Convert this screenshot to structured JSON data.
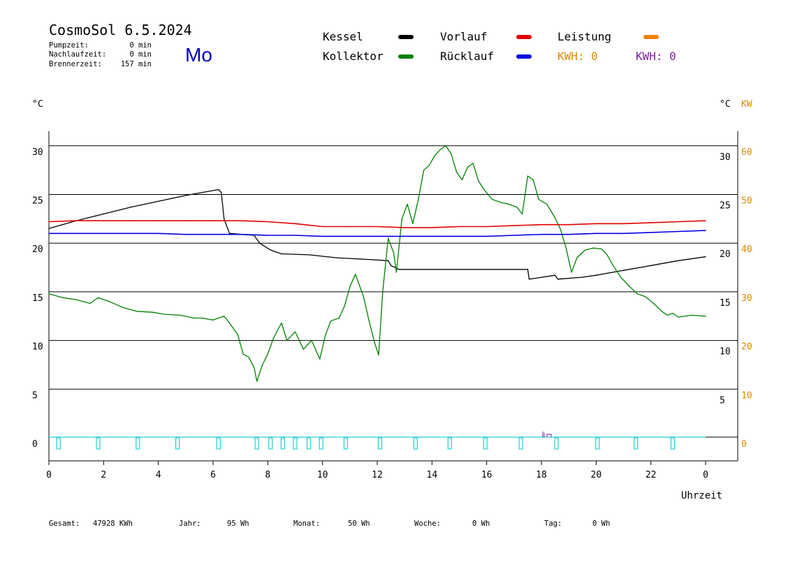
{
  "header": {
    "title": "CosmoSol 6.5.2024",
    "day": "Mo",
    "stats": [
      {
        "label": "Pumpzeit:",
        "value": "0 min"
      },
      {
        "label": "Nachlaufzeit:",
        "value": "0 min"
      },
      {
        "label": "Brennerzeit:",
        "value": "157 min"
      }
    ]
  },
  "legend": {
    "items": [
      {
        "label": "Kessel",
        "color": "#000000"
      },
      {
        "label": "Kollektor",
        "color": "#008000"
      },
      {
        "label": "Vorlauf",
        "color": "#e00000"
      },
      {
        "label": "Rücklauf",
        "color": "#0000e0"
      },
      {
        "label": "Leistung",
        "color": "#f08000"
      }
    ],
    "kwh_left": "KWH: 0",
    "kwh_left_color": "#e08a00",
    "kwh_right": "KWH: 0",
    "kwh_right_color": "#8020a0"
  },
  "axes": {
    "left_unit": "°C",
    "right_unit": "°C",
    "right_unit2": "KW",
    "xlabel": "Uhrzeit"
  },
  "footer": {
    "items": [
      {
        "label": "Gesamt:",
        "value": "47928 KWh"
      },
      {
        "label": "Jahr:",
        "value": "95 Wh"
      },
      {
        "label": "Monat:",
        "value": "50 Wh"
      },
      {
        "label": "Woche:",
        "value": "0 Wh"
      },
      {
        "label": "Tag:",
        "value": "0 Wh"
      }
    ]
  },
  "chart_data": {
    "type": "line",
    "x_ticks": [
      "0",
      "2",
      "4",
      "6",
      "8",
      "10",
      "12",
      "14",
      "16",
      "18",
      "20",
      "22",
      "0"
    ],
    "x_range": [
      0,
      24
    ],
    "ylim": [
      -2.5,
      32
    ],
    "y_ticks_left": [
      "30",
      "25",
      "20",
      "15",
      "10",
      "5",
      "0"
    ],
    "y_tick_values": [
      30,
      25,
      20,
      15,
      10,
      5,
      0
    ],
    "y_ticks_right_c": [
      "30",
      "25",
      "20",
      "15",
      "10",
      "5"
    ],
    "y_ticks_right_kw": [
      "60",
      "50",
      "40",
      "30",
      "20",
      "10",
      "0"
    ],
    "grid": true,
    "series": [
      {
        "name": "Kessel",
        "color": "#000000",
        "points": [
          [
            0,
            21.5
          ],
          [
            1,
            22.3
          ],
          [
            2,
            23.0
          ],
          [
            3,
            23.7
          ],
          [
            4,
            24.3
          ],
          [
            5,
            24.9
          ],
          [
            6.2,
            25.5
          ],
          [
            6.3,
            25.2
          ],
          [
            6.4,
            22.5
          ],
          [
            6.6,
            21.0
          ],
          [
            7.5,
            20.8
          ],
          [
            7.7,
            20.0
          ],
          [
            8.1,
            19.3
          ],
          [
            8.5,
            18.9
          ],
          [
            9.5,
            18.8
          ],
          [
            10.5,
            18.5
          ],
          [
            11.8,
            18.3
          ],
          [
            12.4,
            18.2
          ],
          [
            12.5,
            17.7
          ],
          [
            12.8,
            17.3
          ],
          [
            17.5,
            17.3
          ],
          [
            17.55,
            16.3
          ],
          [
            18.5,
            16.7
          ],
          [
            18.6,
            16.3
          ],
          [
            19.5,
            16.5
          ],
          [
            20,
            16.7
          ],
          [
            21,
            17.2
          ],
          [
            22,
            17.7
          ],
          [
            23,
            18.2
          ],
          [
            24,
            18.6
          ]
        ]
      },
      {
        "name": "Kollektor",
        "color": "#008000",
        "points": [
          [
            0,
            14.8
          ],
          [
            0.5,
            14.4
          ],
          [
            1,
            14.2
          ],
          [
            1.5,
            13.8
          ],
          [
            1.8,
            14.4
          ],
          [
            2.2,
            14.0
          ],
          [
            2.7,
            13.4
          ],
          [
            3.2,
            13.0
          ],
          [
            3.8,
            12.9
          ],
          [
            4.2,
            12.7
          ],
          [
            4.8,
            12.6
          ],
          [
            5.3,
            12.3
          ],
          [
            5.6,
            12.3
          ],
          [
            6,
            12.1
          ],
          [
            6.4,
            12.5
          ],
          [
            6.6,
            11.8
          ],
          [
            6.9,
            10.6
          ],
          [
            7.1,
            8.6
          ],
          [
            7.3,
            8.3
          ],
          [
            7.5,
            7.2
          ],
          [
            7.6,
            5.8
          ],
          [
            7.8,
            7.5
          ],
          [
            8.0,
            8.6
          ],
          [
            8.2,
            10.2
          ],
          [
            8.5,
            11.8
          ],
          [
            8.7,
            10.0
          ],
          [
            9.0,
            10.9
          ],
          [
            9.3,
            9.1
          ],
          [
            9.6,
            10.0
          ],
          [
            9.9,
            8.1
          ],
          [
            10.1,
            10.5
          ],
          [
            10.3,
            12.0
          ],
          [
            10.6,
            12.3
          ],
          [
            10.8,
            13.5
          ],
          [
            11,
            15.5
          ],
          [
            11.2,
            16.8
          ],
          [
            11.5,
            14.5
          ],
          [
            11.7,
            12.0
          ],
          [
            11.9,
            9.8
          ],
          [
            12.05,
            8.5
          ],
          [
            12.2,
            15.0
          ],
          [
            12.4,
            20.5
          ],
          [
            12.6,
            19.0
          ],
          [
            12.7,
            17.0
          ],
          [
            12.9,
            22.5
          ],
          [
            13.1,
            24.0
          ],
          [
            13.3,
            22.0
          ],
          [
            13.5,
            24.5
          ],
          [
            13.7,
            27.5
          ],
          [
            13.9,
            28.0
          ],
          [
            14.1,
            29.0
          ],
          [
            14.3,
            29.6
          ],
          [
            14.5,
            30.0
          ],
          [
            14.7,
            29.2
          ],
          [
            14.9,
            27.3
          ],
          [
            15.1,
            26.5
          ],
          [
            15.3,
            27.8
          ],
          [
            15.5,
            28.2
          ],
          [
            15.7,
            26.4
          ],
          [
            15.9,
            25.5
          ],
          [
            16.2,
            24.5
          ],
          [
            16.5,
            24.2
          ],
          [
            16.8,
            24.0
          ],
          [
            17.1,
            23.7
          ],
          [
            17.3,
            23.0
          ],
          [
            17.5,
            26.9
          ],
          [
            17.7,
            26.5
          ],
          [
            17.9,
            24.5
          ],
          [
            18.2,
            24.0
          ],
          [
            18.5,
            22.6
          ],
          [
            18.7,
            21.4
          ],
          [
            18.9,
            19.5
          ],
          [
            19.1,
            17.0
          ],
          [
            19.3,
            18.5
          ],
          [
            19.6,
            19.3
          ],
          [
            19.9,
            19.5
          ],
          [
            20.2,
            19.4
          ],
          [
            20.4,
            18.8
          ],
          [
            20.6,
            17.8
          ],
          [
            20.9,
            16.5
          ],
          [
            21.2,
            15.6
          ],
          [
            21.5,
            14.8
          ],
          [
            21.8,
            14.5
          ],
          [
            22.1,
            13.8
          ],
          [
            22.4,
            13.0
          ],
          [
            22.6,
            12.6
          ],
          [
            22.8,
            12.8
          ],
          [
            23.0,
            12.4
          ],
          [
            23.5,
            12.6
          ],
          [
            24,
            12.5
          ]
        ]
      },
      {
        "name": "Vorlauf",
        "color": "#e00000",
        "points": [
          [
            0,
            22.2
          ],
          [
            1,
            22.3
          ],
          [
            2,
            22.3
          ],
          [
            3,
            22.3
          ],
          [
            4,
            22.3
          ],
          [
            5,
            22.3
          ],
          [
            6,
            22.3
          ],
          [
            7,
            22.3
          ],
          [
            8,
            22.2
          ],
          [
            9,
            22.0
          ],
          [
            10,
            21.7
          ],
          [
            11,
            21.7
          ],
          [
            12,
            21.7
          ],
          [
            13,
            21.6
          ],
          [
            14,
            21.6
          ],
          [
            15,
            21.7
          ],
          [
            16,
            21.7
          ],
          [
            17,
            21.8
          ],
          [
            18,
            21.9
          ],
          [
            19,
            21.9
          ],
          [
            20,
            22.0
          ],
          [
            21,
            22.0
          ],
          [
            22,
            22.1
          ],
          [
            23,
            22.2
          ],
          [
            24,
            22.3
          ]
        ]
      },
      {
        "name": "Rücklauf",
        "color": "#0000e0",
        "points": [
          [
            0,
            21.0
          ],
          [
            1,
            21.0
          ],
          [
            2,
            21.0
          ],
          [
            3,
            21.0
          ],
          [
            4,
            21.0
          ],
          [
            5,
            20.9
          ],
          [
            6,
            20.9
          ],
          [
            7,
            20.9
          ],
          [
            8,
            20.8
          ],
          [
            9,
            20.8
          ],
          [
            10,
            20.7
          ],
          [
            11,
            20.7
          ],
          [
            12,
            20.7
          ],
          [
            13,
            20.7
          ],
          [
            14,
            20.7
          ],
          [
            15,
            20.7
          ],
          [
            16,
            20.7
          ],
          [
            17,
            20.8
          ],
          [
            18,
            20.9
          ],
          [
            19,
            20.9
          ],
          [
            20,
            21.0
          ],
          [
            21,
            21.0
          ],
          [
            22,
            21.1
          ],
          [
            23,
            21.2
          ],
          [
            24,
            21.3
          ]
        ]
      }
    ],
    "pump_marker_color": "#20d0d0",
    "pump_markers": [
      0.35,
      1.8,
      3.25,
      4.7,
      6.2,
      7.6,
      8.1,
      8.55,
      9.0,
      9.5,
      9.95,
      10.85,
      12.1,
      13.4,
      14.65,
      15.95,
      17.25,
      18.55,
      20.05,
      21.45,
      22.8
    ]
  }
}
